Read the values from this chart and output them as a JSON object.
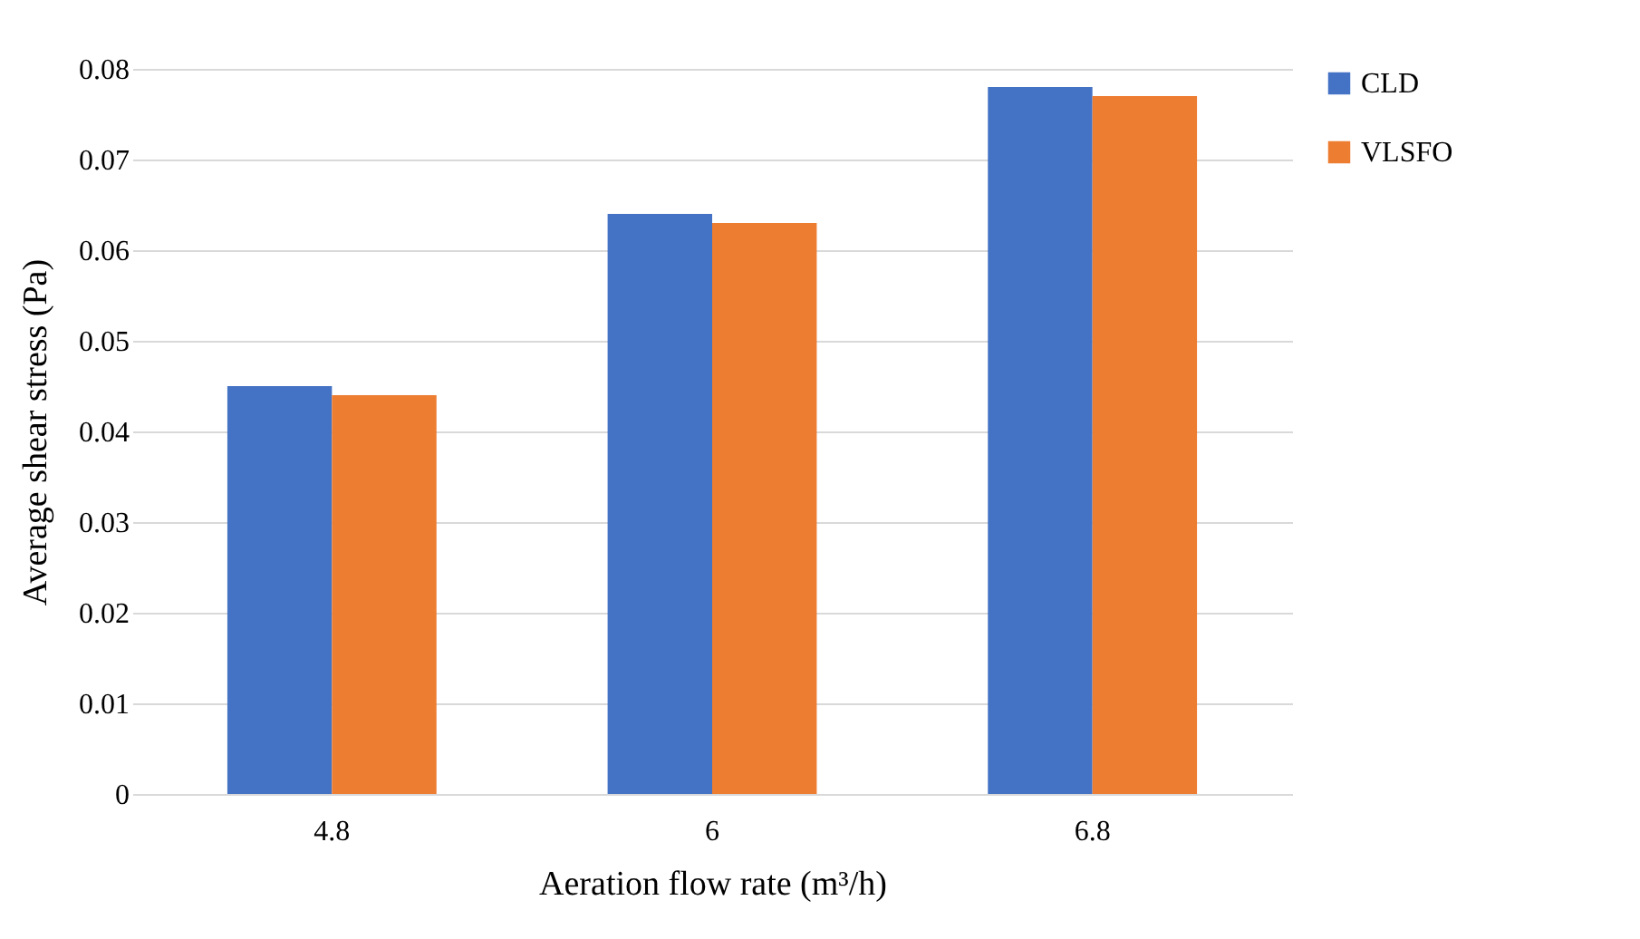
{
  "chart_data": {
    "type": "bar",
    "xlabel": "Aeration flow rate (m³/h)",
    "ylabel": "Average shear stress (Pa)",
    "categories": [
      "4.8",
      "6",
      "6.8"
    ],
    "series": [
      {
        "name": "CLD",
        "color": "#4472c4",
        "values": [
          0.045,
          0.064,
          0.078
        ]
      },
      {
        "name": "VLSFO",
        "color": "#ed7d31",
        "values": [
          0.044,
          0.063,
          0.077
        ]
      }
    ],
    "ylim": [
      0,
      0.08
    ],
    "yticks": [
      0,
      0.01,
      0.02,
      0.03,
      0.04,
      0.05,
      0.06,
      0.07,
      0.08
    ],
    "grid": "y",
    "legend": "right"
  }
}
